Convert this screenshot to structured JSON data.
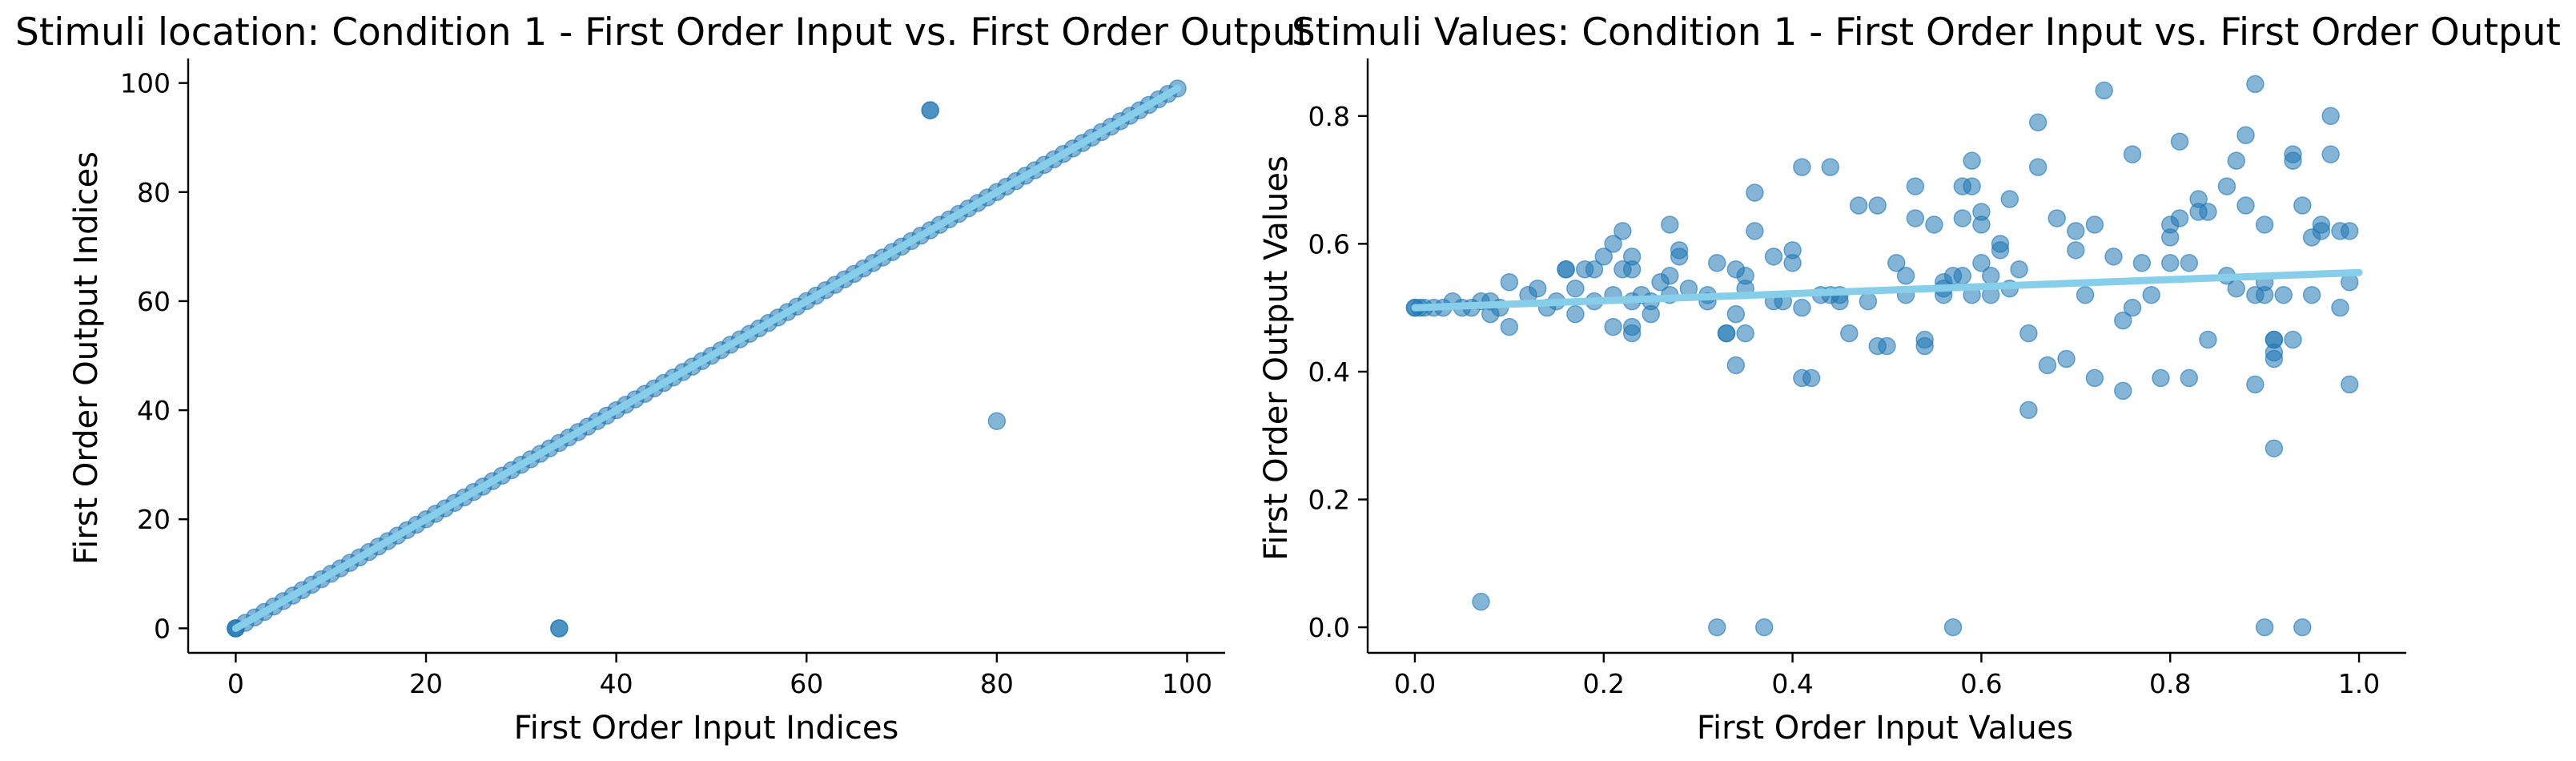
{
  "colors": {
    "points": "#1f77b4",
    "trend": "#87ceeb",
    "axis": "#000000"
  },
  "chart_data": [
    {
      "type": "scatter",
      "title": "Stimuli location: Condition 1 - First Order Input vs. First Order Output",
      "xlabel": "First Order Input Indices",
      "ylabel": "First Order Output Indices",
      "xlim": [
        -5,
        104
      ],
      "ylim": [
        -4.5,
        104.5
      ],
      "xticks": [
        0,
        20,
        40,
        60,
        80,
        100
      ],
      "yticks": [
        0,
        20,
        40,
        60,
        80,
        100
      ],
      "xtick_labels": [
        "0",
        "20",
        "40",
        "60",
        "80",
        "100"
      ],
      "ytick_labels": [
        "0",
        "20",
        "40",
        "60",
        "80",
        "100"
      ],
      "grid": false,
      "diagonal_points": {
        "from": 0,
        "to": 99,
        "step": 1
      },
      "extra_points": [
        [
          0,
          0
        ],
        [
          0,
          0
        ],
        [
          34,
          0
        ],
        [
          34,
          0
        ],
        [
          73,
          95
        ],
        [
          73,
          95
        ],
        [
          80,
          38
        ]
      ],
      "trend_line": [
        [
          0,
          0
        ],
        [
          99,
          99
        ]
      ]
    },
    {
      "type": "scatter",
      "title": "Stimuli Values: Condition 1 - First Order Input vs. First Order Output",
      "xlabel": "First Order Input Values",
      "ylabel": "First Order Output Values",
      "xlim": [
        -0.05,
        1.05
      ],
      "ylim": [
        -0.04,
        0.89
      ],
      "xticks": [
        0.0,
        0.2,
        0.4,
        0.6,
        0.8,
        1.0
      ],
      "yticks": [
        0.0,
        0.2,
        0.4,
        0.6,
        0.8
      ],
      "xtick_labels": [
        "0.0",
        "0.2",
        "0.4",
        "0.6",
        "0.8",
        "1.0"
      ],
      "ytick_labels": [
        "0.0",
        "0.2",
        "0.4",
        "0.6",
        "0.8"
      ],
      "grid": false,
      "points": [
        [
          0.0,
          0.5
        ],
        [
          0.0,
          0.5
        ],
        [
          0.005,
          0.5
        ],
        [
          0.01,
          0.5
        ],
        [
          0.02,
          0.5
        ],
        [
          0.03,
          0.5
        ],
        [
          0.04,
          0.51
        ],
        [
          0.05,
          0.5
        ],
        [
          0.06,
          0.5
        ],
        [
          0.07,
          0.51
        ],
        [
          0.08,
          0.51
        ],
        [
          0.09,
          0.5
        ],
        [
          0.07,
          0.04
        ],
        [
          0.08,
          0.49
        ],
        [
          0.1,
          0.47
        ],
        [
          0.1,
          0.54
        ],
        [
          0.12,
          0.52
        ],
        [
          0.13,
          0.53
        ],
        [
          0.14,
          0.5
        ],
        [
          0.15,
          0.51
        ],
        [
          0.16,
          0.56
        ],
        [
          0.16,
          0.56
        ],
        [
          0.17,
          0.49
        ],
        [
          0.17,
          0.53
        ],
        [
          0.18,
          0.56
        ],
        [
          0.19,
          0.51
        ],
        [
          0.19,
          0.56
        ],
        [
          0.2,
          0.58
        ],
        [
          0.21,
          0.47
        ],
        [
          0.21,
          0.52
        ],
        [
          0.21,
          0.6
        ],
        [
          0.22,
          0.62
        ],
        [
          0.22,
          0.56
        ],
        [
          0.23,
          0.46
        ],
        [
          0.23,
          0.47
        ],
        [
          0.23,
          0.51
        ],
        [
          0.23,
          0.56
        ],
        [
          0.23,
          0.58
        ],
        [
          0.24,
          0.52
        ],
        [
          0.25,
          0.49
        ],
        [
          0.25,
          0.51
        ],
        [
          0.26,
          0.54
        ],
        [
          0.27,
          0.52
        ],
        [
          0.27,
          0.55
        ],
        [
          0.27,
          0.63
        ],
        [
          0.28,
          0.58
        ],
        [
          0.28,
          0.59
        ],
        [
          0.29,
          0.53
        ],
        [
          0.31,
          0.51
        ],
        [
          0.31,
          0.52
        ],
        [
          0.32,
          0.0
        ],
        [
          0.32,
          0.57
        ],
        [
          0.33,
          0.46
        ],
        [
          0.33,
          0.46
        ],
        [
          0.34,
          0.41
        ],
        [
          0.34,
          0.49
        ],
        [
          0.34,
          0.56
        ],
        [
          0.35,
          0.46
        ],
        [
          0.35,
          0.55
        ],
        [
          0.35,
          0.53
        ],
        [
          0.36,
          0.62
        ],
        [
          0.36,
          0.68
        ],
        [
          0.37,
          0.0
        ],
        [
          0.38,
          0.51
        ],
        [
          0.38,
          0.58
        ],
        [
          0.39,
          0.51
        ],
        [
          0.4,
          0.57
        ],
        [
          0.4,
          0.59
        ],
        [
          0.41,
          0.5
        ],
        [
          0.41,
          0.39
        ],
        [
          0.41,
          0.72
        ],
        [
          0.42,
          0.39
        ],
        [
          0.43,
          0.52
        ],
        [
          0.44,
          0.52
        ],
        [
          0.44,
          0.72
        ],
        [
          0.45,
          0.51
        ],
        [
          0.45,
          0.52
        ],
        [
          0.46,
          0.46
        ],
        [
          0.47,
          0.66
        ],
        [
          0.48,
          0.51
        ],
        [
          0.49,
          0.44
        ],
        [
          0.49,
          0.66
        ],
        [
          0.5,
          0.44
        ],
        [
          0.51,
          0.57
        ],
        [
          0.52,
          0.52
        ],
        [
          0.52,
          0.55
        ],
        [
          0.53,
          0.64
        ],
        [
          0.53,
          0.69
        ],
        [
          0.54,
          0.44
        ],
        [
          0.54,
          0.45
        ],
        [
          0.55,
          0.63
        ],
        [
          0.56,
          0.52
        ],
        [
          0.56,
          0.53
        ],
        [
          0.56,
          0.54
        ],
        [
          0.57,
          0.0
        ],
        [
          0.57,
          0.55
        ],
        [
          0.58,
          0.55
        ],
        [
          0.58,
          0.69
        ],
        [
          0.58,
          0.64
        ],
        [
          0.59,
          0.52
        ],
        [
          0.59,
          0.69
        ],
        [
          0.59,
          0.73
        ],
        [
          0.6,
          0.57
        ],
        [
          0.6,
          0.65
        ],
        [
          0.6,
          0.63
        ],
        [
          0.61,
          0.55
        ],
        [
          0.61,
          0.52
        ],
        [
          0.62,
          0.59
        ],
        [
          0.62,
          0.6
        ],
        [
          0.63,
          0.53
        ],
        [
          0.63,
          0.67
        ],
        [
          0.64,
          0.56
        ],
        [
          0.65,
          0.46
        ],
        [
          0.65,
          0.34
        ],
        [
          0.66,
          0.79
        ],
        [
          0.66,
          0.72
        ],
        [
          0.67,
          0.41
        ],
        [
          0.68,
          0.64
        ],
        [
          0.69,
          0.42
        ],
        [
          0.7,
          0.59
        ],
        [
          0.7,
          0.62
        ],
        [
          0.71,
          0.52
        ],
        [
          0.72,
          0.39
        ],
        [
          0.72,
          0.63
        ],
        [
          0.73,
          0.84
        ],
        [
          0.74,
          0.58
        ],
        [
          0.75,
          0.48
        ],
        [
          0.75,
          0.37
        ],
        [
          0.76,
          0.5
        ],
        [
          0.76,
          0.74
        ],
        [
          0.77,
          0.57
        ],
        [
          0.78,
          0.52
        ],
        [
          0.79,
          0.39
        ],
        [
          0.8,
          0.61
        ],
        [
          0.8,
          0.57
        ],
        [
          0.8,
          0.63
        ],
        [
          0.81,
          0.76
        ],
        [
          0.81,
          0.64
        ],
        [
          0.82,
          0.39
        ],
        [
          0.82,
          0.57
        ],
        [
          0.83,
          0.67
        ],
        [
          0.83,
          0.65
        ],
        [
          0.84,
          0.45
        ],
        [
          0.84,
          0.65
        ],
        [
          0.86,
          0.69
        ],
        [
          0.86,
          0.55
        ],
        [
          0.87,
          0.73
        ],
        [
          0.87,
          0.53
        ],
        [
          0.88,
          0.77
        ],
        [
          0.88,
          0.66
        ],
        [
          0.89,
          0.38
        ],
        [
          0.89,
          0.85
        ],
        [
          0.89,
          0.52
        ],
        [
          0.9,
          0.0
        ],
        [
          0.9,
          0.63
        ],
        [
          0.9,
          0.52
        ],
        [
          0.9,
          0.54
        ],
        [
          0.91,
          0.45
        ],
        [
          0.91,
          0.43
        ],
        [
          0.91,
          0.45
        ],
        [
          0.91,
          0.28
        ],
        [
          0.91,
          0.42
        ],
        [
          0.92,
          0.52
        ],
        [
          0.93,
          0.45
        ],
        [
          0.93,
          0.73
        ],
        [
          0.93,
          0.74
        ],
        [
          0.94,
          0.0
        ],
        [
          0.94,
          0.66
        ],
        [
          0.95,
          0.52
        ],
        [
          0.95,
          0.61
        ],
        [
          0.96,
          0.63
        ],
        [
          0.96,
          0.62
        ],
        [
          0.97,
          0.74
        ],
        [
          0.97,
          0.8
        ],
        [
          0.98,
          0.5
        ],
        [
          0.98,
          0.62
        ],
        [
          0.99,
          0.62
        ],
        [
          0.99,
          0.38
        ],
        [
          0.99,
          0.54
        ]
      ],
      "trend_line": [
        [
          0.0,
          0.5
        ],
        [
          1.0,
          0.555
        ]
      ]
    }
  ]
}
